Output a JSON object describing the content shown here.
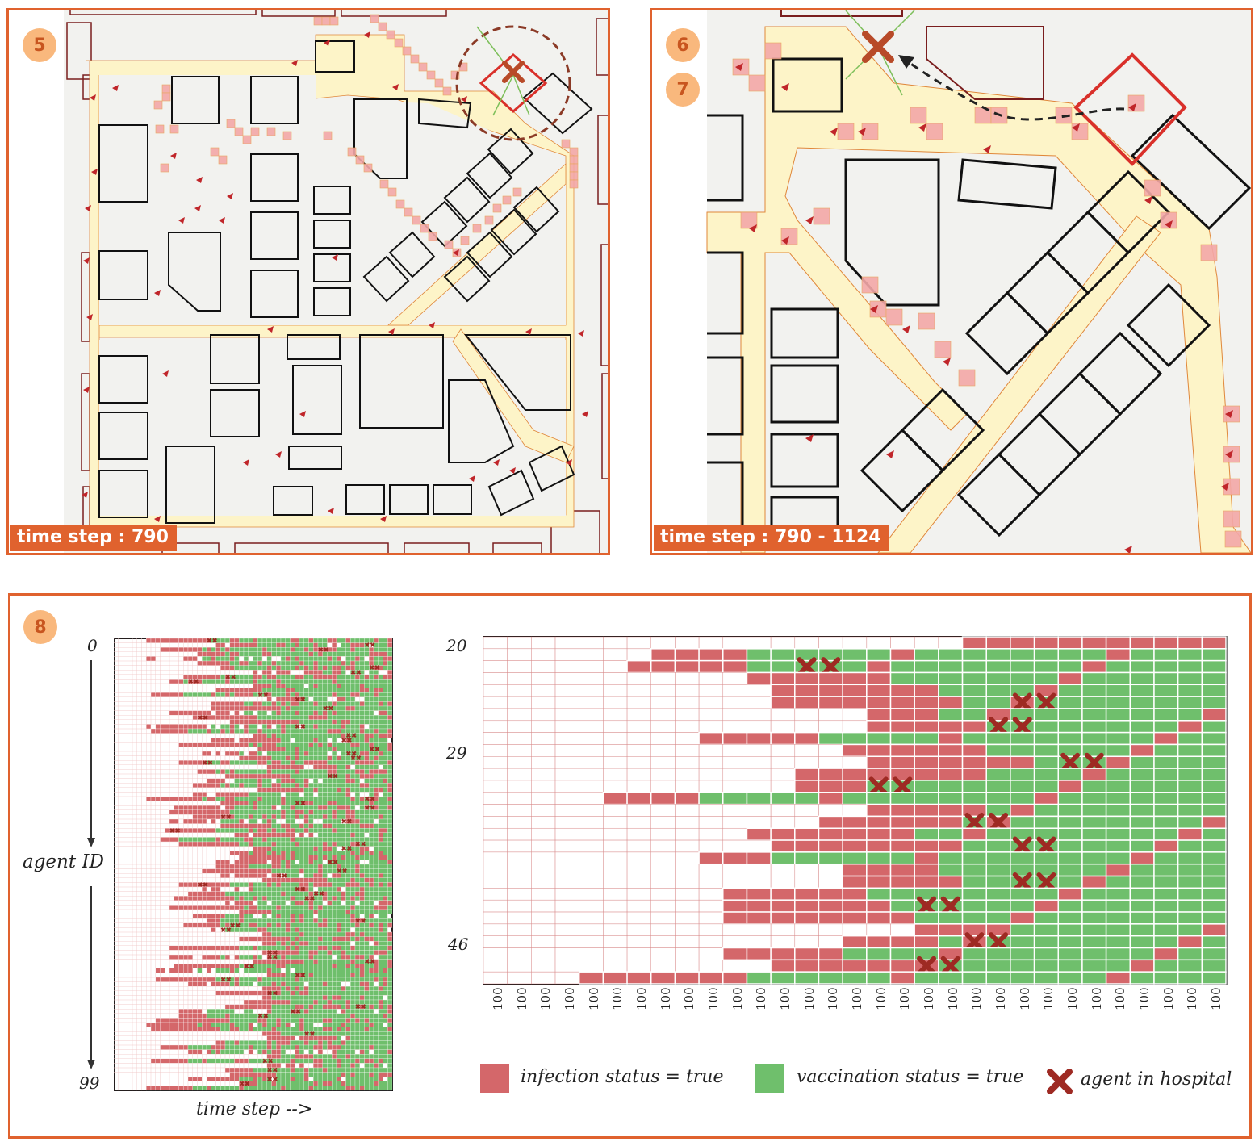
{
  "panel5": {
    "badge": "5",
    "timestep": "time step : 790"
  },
  "panel6": {
    "badges": [
      "6",
      "7"
    ],
    "timestep": "time step : 790 - 1124"
  },
  "panel8": {
    "badge": "8",
    "overview": {
      "top_label": "0",
      "bottom_label": "99",
      "y_axis_label": "agent ID",
      "x_axis_label": "time step -->"
    },
    "detail": {
      "row_labels": [
        "20",
        "29",
        "46"
      ],
      "column_label": "100",
      "column_count": 31
    },
    "legend": {
      "infection": "infection status = true",
      "vaccination": "vaccination status = true",
      "hospital": "agent in hospital"
    }
  },
  "colors": {
    "frame": "#e0622e",
    "badge": "#f9b87d",
    "infection": "#d4676a",
    "vaccination": "#6fbf6c",
    "hospital": "#9e2a23",
    "road": "#fdf4c8",
    "grid_cell": "#f4a8a8"
  },
  "icons": [
    "hospital-x-icon",
    "agent-arrow-icon",
    "dashed-path-arrow-icon"
  ]
}
